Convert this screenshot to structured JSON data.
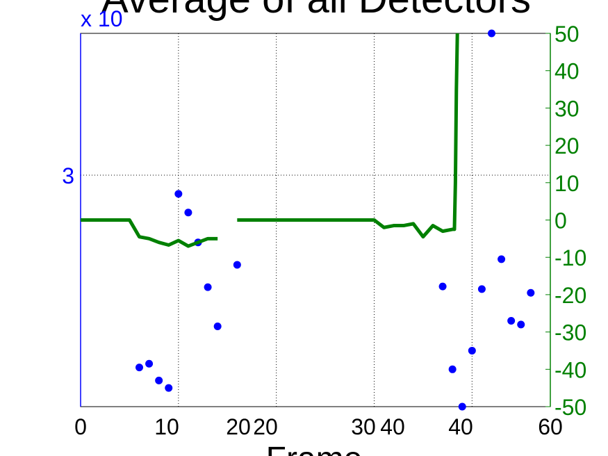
{
  "chart_data": {
    "type": "line",
    "title": "Average of all Detectors",
    "xlabel": "Frame",
    "colors": {
      "left": "#0000ff",
      "right": "#008000",
      "grid": "#000000"
    },
    "grid": true,
    "x_axis_bottom": {
      "tick_labels": [
        "0",
        "10",
        "20",
        "30",
        "40",
        "60"
      ],
      "tick_values": [
        0,
        10,
        20,
        30,
        40,
        60
      ]
    },
    "x_axis_top_overlay": {
      "tick_labels": [
        "20",
        "40"
      ],
      "tick_values": [
        20,
        40
      ]
    },
    "y_left": {
      "exponent_label": "x 10",
      "tick_labels": [
        "3"
      ],
      "tick_values": [
        3
      ]
    },
    "y_right": {
      "ylim": [
        -50,
        50
      ],
      "tick_labels": [
        "50",
        "40",
        "30",
        "20",
        "10",
        "0",
        "-10",
        "-20",
        "-30",
        "-40",
        "-50"
      ],
      "tick_values": [
        50,
        40,
        30,
        20,
        10,
        0,
        -10,
        -20,
        -30,
        -40,
        -50
      ]
    },
    "series": [
      {
        "type": "scatter",
        "color": "#0000ff",
        "x": [
          6,
          7,
          8,
          9,
          10,
          11,
          12,
          13,
          14,
          16,
          37,
          38,
          39,
          40,
          41,
          42,
          43,
          44,
          45,
          46
        ],
        "y": [
          -39.5,
          -38.5,
          -43,
          -45,
          7,
          2,
          -6,
          -18,
          -28.5,
          -12,
          -17.8,
          -40,
          -50,
          -35,
          -18.5,
          50,
          -10.5,
          -27,
          -28,
          -19.5
        ]
      },
      {
        "type": "line",
        "color": "#008000",
        "x": [
          0,
          5,
          6,
          7,
          8,
          9,
          10,
          11,
          12,
          13,
          14
        ],
        "y": [
          0,
          0,
          -4.5,
          -5,
          -6,
          -6.7,
          -5.5,
          -7,
          -6,
          -5,
          -5
        ]
      },
      {
        "type": "line",
        "color": "#008000",
        "x": [
          16,
          30,
          31,
          32,
          33,
          34,
          35,
          36,
          37,
          38,
          38.2,
          38.3,
          38.4,
          38.5
        ],
        "y": [
          0,
          0,
          -2,
          -1.5,
          -1.5,
          -1,
          -4.5,
          -1.5,
          -3,
          -2.5,
          -2.5,
          10,
          35,
          55
        ]
      }
    ]
  }
}
